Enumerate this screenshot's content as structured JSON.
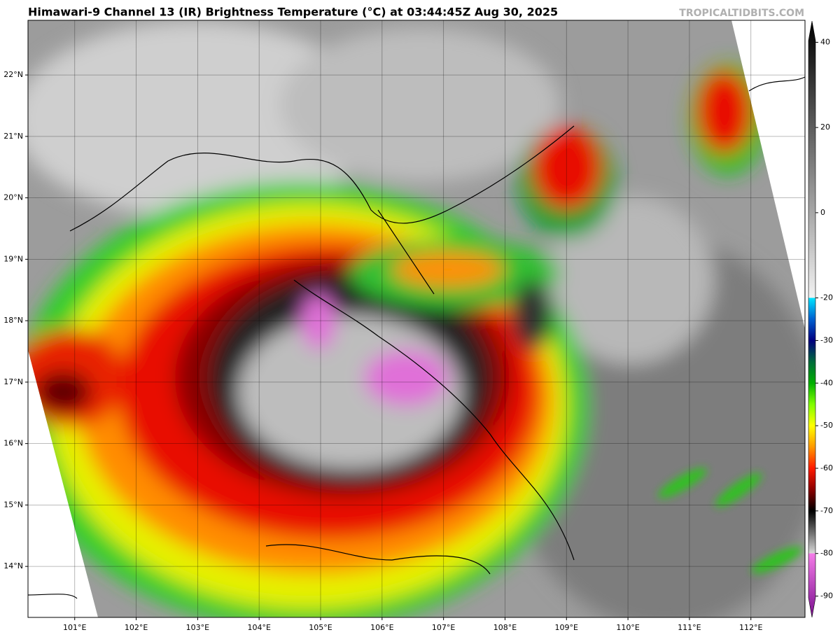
{
  "header": {
    "title": "Himawari-9 Channel 13 (IR) Brightness Temperature (°C) at 03:44:45Z Aug 30, 2025",
    "watermark": "TROPICALTIDBITS.COM"
  },
  "map": {
    "xlim": [
      100.24,
      112.88
    ],
    "ylim": [
      13.17,
      22.89
    ],
    "xticks": [
      {
        "value": 101,
        "label": "101°E"
      },
      {
        "value": 102,
        "label": "102°E"
      },
      {
        "value": 103,
        "label": "103°E"
      },
      {
        "value": 104,
        "label": "104°E"
      },
      {
        "value": 105,
        "label": "105°E"
      },
      {
        "value": 106,
        "label": "106°E"
      },
      {
        "value": 107,
        "label": "107°E"
      },
      {
        "value": 108,
        "label": "108°E"
      },
      {
        "value": 109,
        "label": "109°E"
      },
      {
        "value": 110,
        "label": "110°E"
      },
      {
        "value": 111,
        "label": "111°E"
      },
      {
        "value": 112,
        "label": "112°E"
      }
    ],
    "yticks": [
      {
        "value": 14,
        "label": "14°N"
      },
      {
        "value": 15,
        "label": "15°N"
      },
      {
        "value": 16,
        "label": "16°N"
      },
      {
        "value": 17,
        "label": "17°N"
      },
      {
        "value": 18,
        "label": "18°N"
      },
      {
        "value": 19,
        "label": "19°N"
      },
      {
        "value": 20,
        "label": "20°N"
      },
      {
        "value": 21,
        "label": "21°N"
      },
      {
        "value": 22,
        "label": "22°N"
      }
    ],
    "grid": true
  },
  "colorbar": {
    "lim": [
      -95,
      45
    ],
    "ticks": [
      40,
      20,
      0,
      -20,
      -30,
      -40,
      -50,
      -60,
      -70,
      -80,
      -90
    ],
    "stops": [
      {
        "value": -95,
        "color": "#7a0f8f"
      },
      {
        "value": -80,
        "color": "#f47ce8"
      },
      {
        "value": -80,
        "color": "#d8d8d8"
      },
      {
        "value": -70,
        "color": "#000000"
      },
      {
        "value": -65,
        "color": "#8b0000"
      },
      {
        "value": -60,
        "color": "#ff1a00"
      },
      {
        "value": -55,
        "color": "#ff9900"
      },
      {
        "value": -50,
        "color": "#ffff00"
      },
      {
        "value": -45,
        "color": "#80ff00"
      },
      {
        "value": -40,
        "color": "#00b000"
      },
      {
        "value": -35,
        "color": "#006b3c"
      },
      {
        "value": -30,
        "color": "#000080"
      },
      {
        "value": -25,
        "color": "#0060d0"
      },
      {
        "value": -20,
        "color": "#00e5ff"
      },
      {
        "value": -20,
        "color": "#f2f2f2"
      },
      {
        "value": 45,
        "color": "#000000"
      }
    ]
  }
}
